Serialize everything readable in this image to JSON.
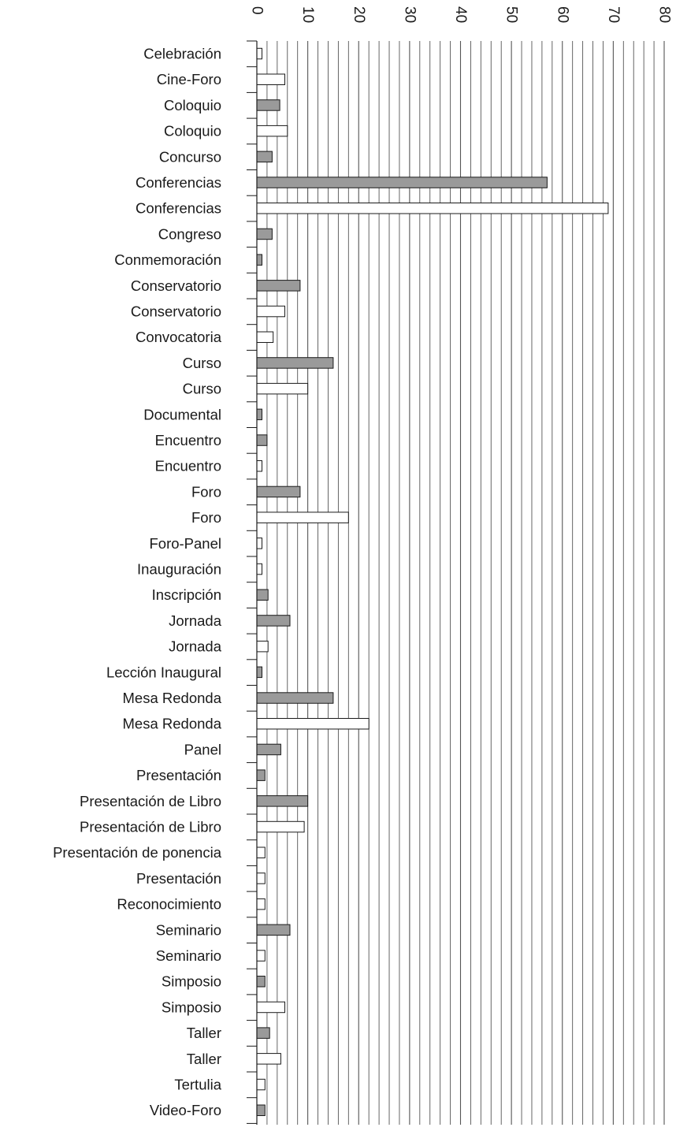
{
  "chart_data": {
    "type": "bar",
    "orientation": "horizontal",
    "title": "",
    "xlabel": "",
    "ylabel": "",
    "xlim": [
      0,
      80
    ],
    "x_ticks": [
      "0",
      "10",
      "20",
      "30",
      "40",
      "50",
      "60",
      "70",
      "80"
    ],
    "tick_label_rotation": "90deg",
    "grid": true,
    "legend": "none",
    "colors": {
      "shaded": "#9a9a9a",
      "open": "#ffffff",
      "outline": "#1a1a1a",
      "grid": "#555555"
    },
    "categories": [
      "Celebración",
      "Cine-Foro",
      "Coloquio",
      "Coloquio",
      "Concurso",
      "Conferencias",
      "Conferencias",
      "Congreso",
      "Conmemoración",
      "Conservatorio",
      "Conservatorio",
      "Convocatoria",
      "Curso",
      "Curso",
      "Documental",
      "Encuentro",
      "Encuentro",
      "Foro",
      "Foro",
      "Foro-Panel",
      "Inauguración",
      "Inscripción",
      "Jornada",
      "Jornada",
      "Lección Inaugural",
      "Mesa Redonda",
      "Mesa Redonda",
      "Panel",
      "Presentación",
      "Presentación de Libro",
      "Presentación de Libro",
      "Presentación de ponencia",
      "Presentación",
      "Reconocimiento",
      "Seminario",
      "Seminario",
      "Simposio",
      "Simposio",
      "Taller",
      "Taller",
      "Tertulia",
      "Video-Foro"
    ],
    "values": [
      1,
      5.5,
      4.5,
      6,
      3,
      57,
      69,
      3,
      1,
      8.5,
      5.5,
      3.2,
      15,
      10,
      1,
      2,
      1,
      8.5,
      18,
      1,
      1,
      2.2,
      6.5,
      2.2,
      1,
      15,
      22,
      4.7,
      1.6,
      10,
      9.3,
      1.6,
      1.6,
      1.6,
      6.5,
      1.6,
      1.6,
      5.5,
      2.5,
      4.7,
      1.6,
      1.6
    ],
    "fills": [
      "open",
      "open",
      "shaded",
      "open",
      "shaded",
      "shaded",
      "open",
      "shaded",
      "shaded",
      "shaded",
      "open",
      "open",
      "shaded",
      "open",
      "shaded",
      "shaded",
      "open",
      "shaded",
      "open",
      "open",
      "open",
      "shaded",
      "shaded",
      "open",
      "shaded",
      "shaded",
      "open",
      "shaded",
      "shaded",
      "shaded",
      "open",
      "open",
      "open",
      "open",
      "shaded",
      "open",
      "shaded",
      "open",
      "shaded",
      "open",
      "open",
      "shaded"
    ]
  }
}
